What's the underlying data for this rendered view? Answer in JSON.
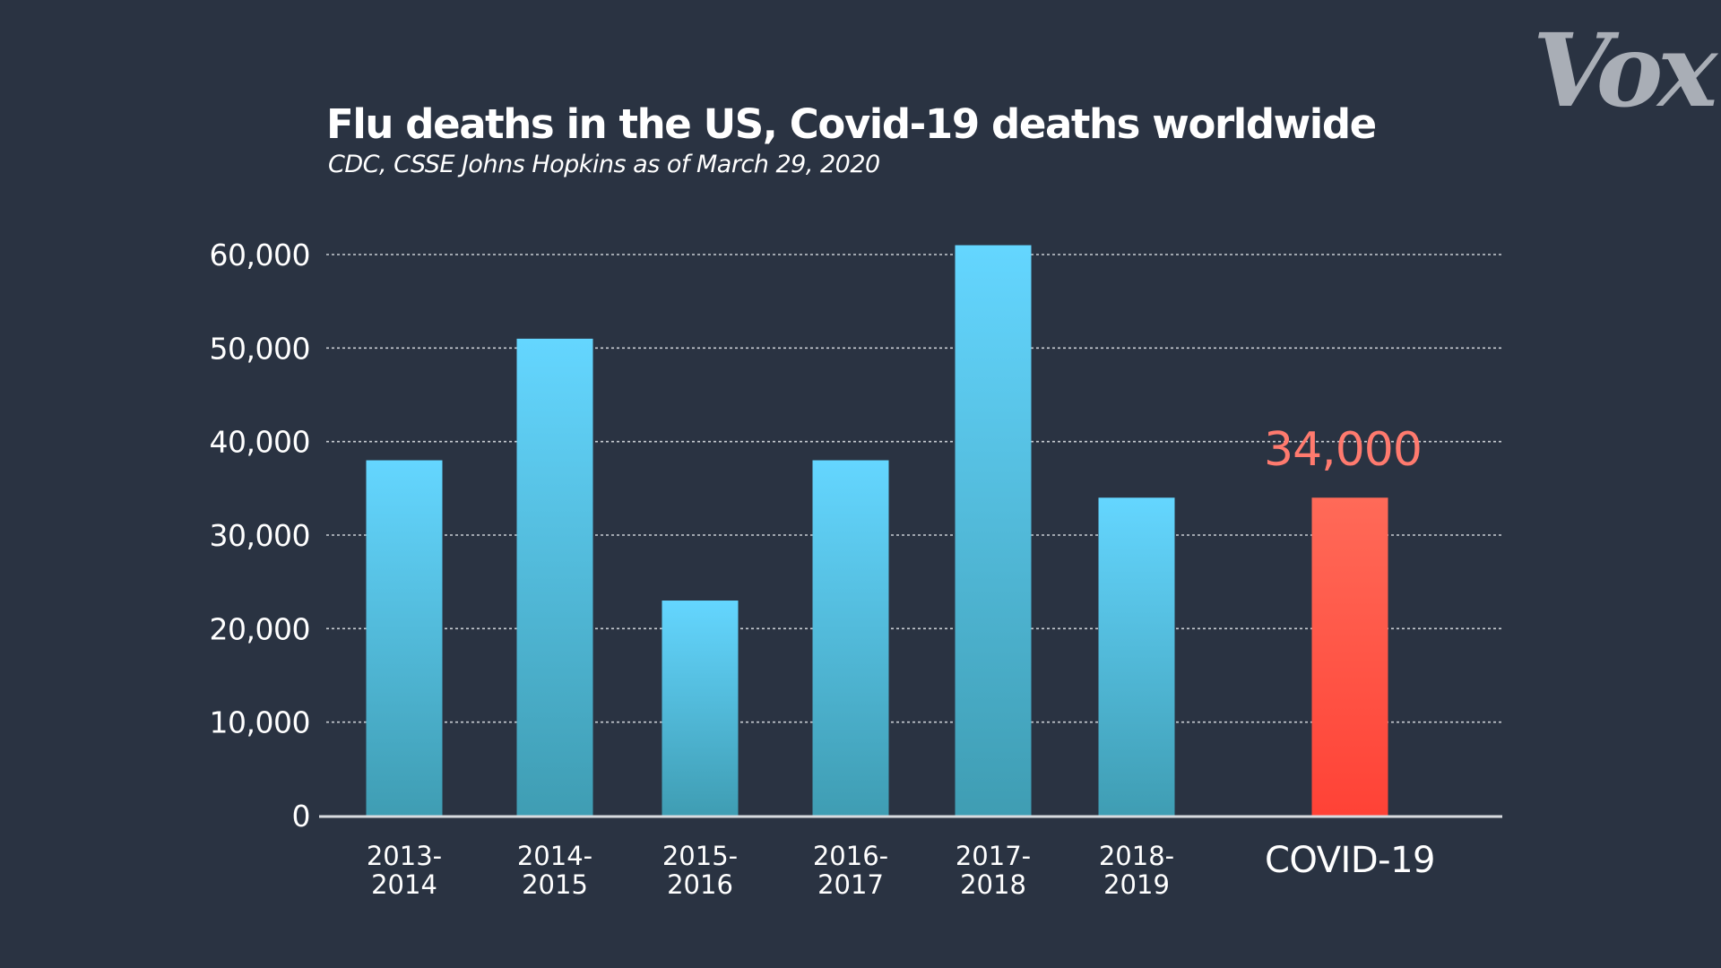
{
  "brand": {
    "logo_text": "Vox"
  },
  "chart_data": {
    "type": "bar",
    "title": "Flu deaths in the US, Covid-19 deaths worldwide",
    "subtitle": "CDC, CSSE Johns Hopkins as of March 29, 2020",
    "xlabel": "",
    "ylabel": "",
    "ylim": [
      0,
      60000
    ],
    "y_ticks": [
      0,
      10000,
      20000,
      30000,
      40000,
      50000,
      60000
    ],
    "y_tick_labels": [
      "0",
      "10,000",
      "20,000",
      "30,000",
      "40,000",
      "50,000",
      "60,000"
    ],
    "grid": "horizontal dotted",
    "categories": [
      [
        "2013-",
        "2014"
      ],
      [
        "2014-",
        "2015"
      ],
      [
        "2015-",
        "2016"
      ],
      [
        "2016-",
        "2017"
      ],
      [
        "2017-",
        "2018"
      ],
      [
        "2018-",
        "2019"
      ],
      [
        "COVID-19"
      ]
    ],
    "values": [
      38000,
      51000,
      23000,
      38000,
      61000,
      34000,
      34000
    ],
    "colors": [
      "#5dd2f8",
      "#5dd2f8",
      "#5dd2f8",
      "#5dd2f8",
      "#5dd2f8",
      "#5dd2f8",
      "#ff4d42"
    ],
    "data_labels": [
      {
        "index": 6,
        "text": "34,000",
        "color": "#ff7a6e"
      }
    ]
  }
}
